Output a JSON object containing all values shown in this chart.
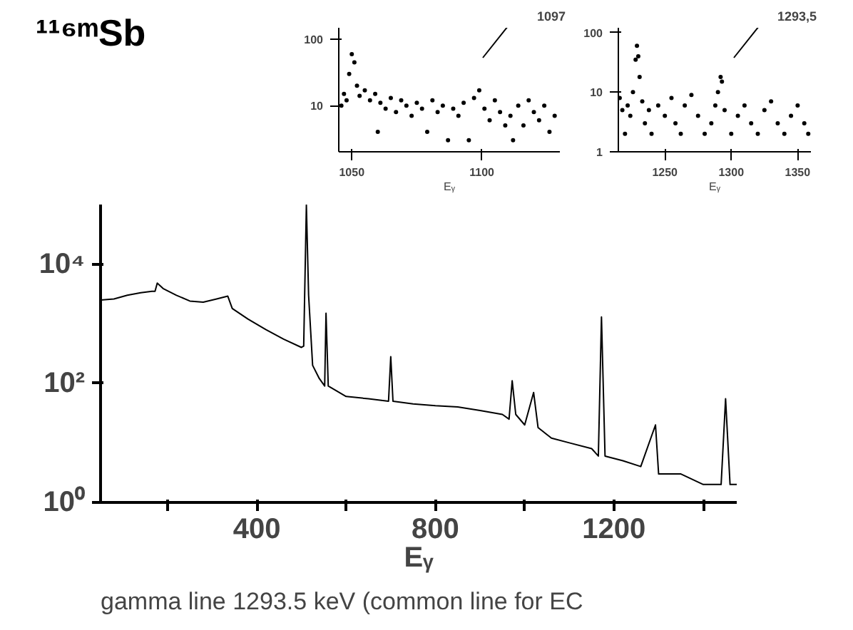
{
  "chart_data": [
    {
      "type": "line",
      "title": "¹¹⁶ᵐSb",
      "xlabel": "Eᵧ",
      "log": "y",
      "grid": false,
      "xlim": [
        50,
        1475
      ],
      "ylim": [
        1,
        100000
      ],
      "xticks": [
        {
          "value": 200,
          "label": null
        },
        400,
        {
          "value": 600,
          "label": null
        },
        800,
        {
          "value": 1000,
          "label": null
        },
        1200,
        {
          "value": 1400,
          "label": null
        }
      ],
      "yticks": [
        {
          "value": 1,
          "label": "10⁰"
        },
        {
          "value": 100,
          "label": "10²"
        },
        {
          "value": 10000,
          "label": "10⁴"
        }
      ],
      "x": [
        50,
        80,
        110,
        140,
        165,
        172,
        177,
        190,
        220,
        250,
        280,
        310,
        335,
        345,
        380,
        420,
        460,
        500,
        505,
        511,
        516,
        525,
        540,
        552,
        555,
        560,
        600,
        650,
        695,
        700,
        705,
        750,
        800,
        850,
        900,
        950,
        965,
        972,
        980,
        1000,
        1020,
        1030,
        1060,
        1100,
        1150,
        1165,
        1172,
        1180,
        1220,
        1260,
        1293,
        1300,
        1350,
        1400,
        1440,
        1450,
        1460,
        1475
      ],
      "series": [
        {
          "color": "#000000",
          "values": [
            2500,
            2600,
            3000,
            3300,
            3500,
            3500,
            4800,
            3900,
            3000,
            2400,
            2300,
            2600,
            2900,
            1800,
            1200,
            800,
            550,
            400,
            420,
            98000,
            3000,
            200,
            120,
            90,
            1500,
            90,
            60,
            55,
            50,
            280,
            50,
            45,
            42,
            40,
            35,
            30,
            25,
            110,
            30,
            20,
            70,
            18,
            12,
            10,
            8,
            6,
            1300,
            6,
            5,
            4,
            20,
            3,
            3,
            2,
            2,
            55,
            2,
            2
          ]
        }
      ],
      "annotations": [
        "gamma line 1293.5 keV (common line for EC"
      ]
    },
    {
      "type": "scatter",
      "xlabel": "Eᵧ",
      "log": "y",
      "grid": false,
      "marker": "circle",
      "xlim": [
        1045,
        1130
      ],
      "ylim": [
        2,
        150
      ],
      "xticks": [
        1050,
        1100
      ],
      "yticks": [
        10,
        100
      ],
      "x": [
        1046,
        1047,
        1048,
        1049,
        1050,
        1051,
        1052,
        1053,
        1055,
        1057,
        1059,
        1060,
        1061,
        1063,
        1065,
        1067,
        1069,
        1071,
        1073,
        1075,
        1077,
        1079,
        1081,
        1083,
        1085,
        1087,
        1089,
        1091,
        1093,
        1095,
        1097,
        1099,
        1101,
        1103,
        1105,
        1107,
        1109,
        1111,
        1112,
        1114,
        1116,
        1118,
        1120,
        1122,
        1124,
        1126,
        1128
      ],
      "series": [
        {
          "color": "#000000",
          "values": [
            10,
            15,
            12,
            30,
            60,
            45,
            20,
            14,
            17,
            12,
            15,
            4,
            11,
            9,
            13,
            8,
            12,
            10,
            7,
            11,
            9,
            4,
            12,
            8,
            10,
            3,
            9,
            7,
            11,
            3,
            13,
            17,
            9,
            6,
            12,
            8,
            5,
            7,
            3,
            10,
            5,
            12,
            8,
            6,
            10,
            4,
            7
          ]
        }
      ],
      "annotations": [
        "1097"
      ]
    },
    {
      "type": "scatter",
      "xlabel": "Eᵧ",
      "log": "y",
      "grid": false,
      "marker": "circle",
      "xlim": [
        1215,
        1360
      ],
      "ylim": [
        1,
        120
      ],
      "xticks": [
        1250,
        1300,
        1350
      ],
      "yticks": [
        1,
        10,
        100
      ],
      "x": [
        1216,
        1218,
        1220,
        1222,
        1224,
        1226,
        1228,
        1229,
        1230,
        1231,
        1233,
        1235,
        1238,
        1240,
        1245,
        1250,
        1255,
        1258,
        1262,
        1265,
        1270,
        1275,
        1280,
        1285,
        1288,
        1290,
        1292,
        1293,
        1295,
        1300,
        1305,
        1310,
        1315,
        1320,
        1325,
        1330,
        1335,
        1340,
        1345,
        1350,
        1355,
        1358
      ],
      "series": [
        {
          "color": "#000000",
          "values": [
            8,
            5,
            2,
            6,
            4,
            10,
            35,
            60,
            40,
            18,
            7,
            3,
            5,
            2,
            6,
            4,
            8,
            3,
            2,
            6,
            9,
            4,
            2,
            3,
            6,
            10,
            18,
            15,
            5,
            2,
            4,
            6,
            3,
            2,
            5,
            7,
            3,
            2,
            4,
            6,
            3,
            2
          ]
        }
      ],
      "annotations": [
        "1293,5"
      ]
    }
  ]
}
